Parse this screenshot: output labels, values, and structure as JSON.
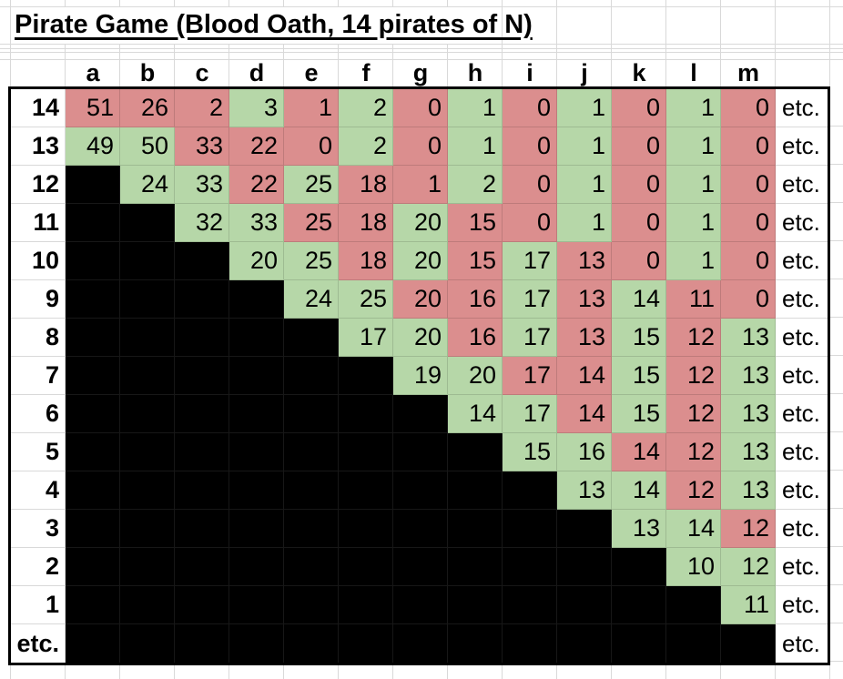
{
  "title": "Pirate Game (Blood Oath, 14 pirates of N)",
  "etc_label": "etc.",
  "columns": [
    "a",
    "b",
    "c",
    "d",
    "e",
    "f",
    "g",
    "h",
    "i",
    "j",
    "k",
    "l",
    "m"
  ],
  "colors": {
    "red": "#db8e8e",
    "green": "#b6d7a8",
    "black": "#000000",
    "gridline": "#d9d9d9",
    "table_border": "#000000"
  },
  "table": {
    "rows": [
      {
        "label": "14",
        "cells": [
          {
            "v": "51",
            "c": "red"
          },
          {
            "v": "26",
            "c": "red"
          },
          {
            "v": "2",
            "c": "red"
          },
          {
            "v": "3",
            "c": "green"
          },
          {
            "v": "1",
            "c": "red"
          },
          {
            "v": "2",
            "c": "green"
          },
          {
            "v": "0",
            "c": "red"
          },
          {
            "v": "1",
            "c": "green"
          },
          {
            "v": "0",
            "c": "red"
          },
          {
            "v": "1",
            "c": "green"
          },
          {
            "v": "0",
            "c": "red"
          },
          {
            "v": "1",
            "c": "green"
          },
          {
            "v": "0",
            "c": "red"
          }
        ]
      },
      {
        "label": "13",
        "cells": [
          {
            "v": "49",
            "c": "green"
          },
          {
            "v": "50",
            "c": "green"
          },
          {
            "v": "33",
            "c": "red"
          },
          {
            "v": "22",
            "c": "red"
          },
          {
            "v": "0",
            "c": "red"
          },
          {
            "v": "2",
            "c": "green"
          },
          {
            "v": "0",
            "c": "red"
          },
          {
            "v": "1",
            "c": "green"
          },
          {
            "v": "0",
            "c": "red"
          },
          {
            "v": "1",
            "c": "green"
          },
          {
            "v": "0",
            "c": "red"
          },
          {
            "v": "1",
            "c": "green"
          },
          {
            "v": "0",
            "c": "red"
          }
        ]
      },
      {
        "label": "12",
        "cells": [
          {
            "c": "black"
          },
          {
            "v": "24",
            "c": "green"
          },
          {
            "v": "33",
            "c": "green"
          },
          {
            "v": "22",
            "c": "red"
          },
          {
            "v": "25",
            "c": "green"
          },
          {
            "v": "18",
            "c": "red"
          },
          {
            "v": "1",
            "c": "red"
          },
          {
            "v": "2",
            "c": "green"
          },
          {
            "v": "0",
            "c": "red"
          },
          {
            "v": "1",
            "c": "green"
          },
          {
            "v": "0",
            "c": "red"
          },
          {
            "v": "1",
            "c": "green"
          },
          {
            "v": "0",
            "c": "red"
          }
        ]
      },
      {
        "label": "11",
        "cells": [
          {
            "c": "black"
          },
          {
            "c": "black"
          },
          {
            "v": "32",
            "c": "green"
          },
          {
            "v": "33",
            "c": "green"
          },
          {
            "v": "25",
            "c": "red"
          },
          {
            "v": "18",
            "c": "red"
          },
          {
            "v": "20",
            "c": "green"
          },
          {
            "v": "15",
            "c": "red"
          },
          {
            "v": "0",
            "c": "red"
          },
          {
            "v": "1",
            "c": "green"
          },
          {
            "v": "0",
            "c": "red"
          },
          {
            "v": "1",
            "c": "green"
          },
          {
            "v": "0",
            "c": "red"
          }
        ]
      },
      {
        "label": "10",
        "cells": [
          {
            "c": "black"
          },
          {
            "c": "black"
          },
          {
            "c": "black"
          },
          {
            "v": "20",
            "c": "green"
          },
          {
            "v": "25",
            "c": "green"
          },
          {
            "v": "18",
            "c": "red"
          },
          {
            "v": "20",
            "c": "green"
          },
          {
            "v": "15",
            "c": "red"
          },
          {
            "v": "17",
            "c": "green"
          },
          {
            "v": "13",
            "c": "red"
          },
          {
            "v": "0",
            "c": "red"
          },
          {
            "v": "1",
            "c": "green"
          },
          {
            "v": "0",
            "c": "red"
          }
        ]
      },
      {
        "label": "9",
        "cells": [
          {
            "c": "black"
          },
          {
            "c": "black"
          },
          {
            "c": "black"
          },
          {
            "c": "black"
          },
          {
            "v": "24",
            "c": "green"
          },
          {
            "v": "25",
            "c": "green"
          },
          {
            "v": "20",
            "c": "red"
          },
          {
            "v": "16",
            "c": "red"
          },
          {
            "v": "17",
            "c": "green"
          },
          {
            "v": "13",
            "c": "red"
          },
          {
            "v": "14",
            "c": "green"
          },
          {
            "v": "11",
            "c": "red"
          },
          {
            "v": "0",
            "c": "red"
          }
        ]
      },
      {
        "label": "8",
        "cells": [
          {
            "c": "black"
          },
          {
            "c": "black"
          },
          {
            "c": "black"
          },
          {
            "c": "black"
          },
          {
            "c": "black"
          },
          {
            "v": "17",
            "c": "green"
          },
          {
            "v": "20",
            "c": "green"
          },
          {
            "v": "16",
            "c": "red"
          },
          {
            "v": "17",
            "c": "green"
          },
          {
            "v": "13",
            "c": "red"
          },
          {
            "v": "15",
            "c": "green"
          },
          {
            "v": "12",
            "c": "red"
          },
          {
            "v": "13",
            "c": "green"
          }
        ]
      },
      {
        "label": "7",
        "cells": [
          {
            "c": "black"
          },
          {
            "c": "black"
          },
          {
            "c": "black"
          },
          {
            "c": "black"
          },
          {
            "c": "black"
          },
          {
            "c": "black"
          },
          {
            "v": "19",
            "c": "green"
          },
          {
            "v": "20",
            "c": "green"
          },
          {
            "v": "17",
            "c": "red"
          },
          {
            "v": "14",
            "c": "red"
          },
          {
            "v": "15",
            "c": "green"
          },
          {
            "v": "12",
            "c": "red"
          },
          {
            "v": "13",
            "c": "green"
          }
        ]
      },
      {
        "label": "6",
        "cells": [
          {
            "c": "black"
          },
          {
            "c": "black"
          },
          {
            "c": "black"
          },
          {
            "c": "black"
          },
          {
            "c": "black"
          },
          {
            "c": "black"
          },
          {
            "c": "black"
          },
          {
            "v": "14",
            "c": "green"
          },
          {
            "v": "17",
            "c": "green"
          },
          {
            "v": "14",
            "c": "red"
          },
          {
            "v": "15",
            "c": "green"
          },
          {
            "v": "12",
            "c": "red"
          },
          {
            "v": "13",
            "c": "green"
          }
        ]
      },
      {
        "label": "5",
        "cells": [
          {
            "c": "black"
          },
          {
            "c": "black"
          },
          {
            "c": "black"
          },
          {
            "c": "black"
          },
          {
            "c": "black"
          },
          {
            "c": "black"
          },
          {
            "c": "black"
          },
          {
            "c": "black"
          },
          {
            "v": "15",
            "c": "green"
          },
          {
            "v": "16",
            "c": "green"
          },
          {
            "v": "14",
            "c": "red"
          },
          {
            "v": "12",
            "c": "red"
          },
          {
            "v": "13",
            "c": "green"
          }
        ]
      },
      {
        "label": "4",
        "cells": [
          {
            "c": "black"
          },
          {
            "c": "black"
          },
          {
            "c": "black"
          },
          {
            "c": "black"
          },
          {
            "c": "black"
          },
          {
            "c": "black"
          },
          {
            "c": "black"
          },
          {
            "c": "black"
          },
          {
            "c": "black"
          },
          {
            "v": "13",
            "c": "green"
          },
          {
            "v": "14",
            "c": "green"
          },
          {
            "v": "12",
            "c": "red"
          },
          {
            "v": "13",
            "c": "green"
          }
        ]
      },
      {
        "label": "3",
        "cells": [
          {
            "c": "black"
          },
          {
            "c": "black"
          },
          {
            "c": "black"
          },
          {
            "c": "black"
          },
          {
            "c": "black"
          },
          {
            "c": "black"
          },
          {
            "c": "black"
          },
          {
            "c": "black"
          },
          {
            "c": "black"
          },
          {
            "c": "black"
          },
          {
            "v": "13",
            "c": "green"
          },
          {
            "v": "14",
            "c": "green"
          },
          {
            "v": "12",
            "c": "red"
          }
        ]
      },
      {
        "label": "2",
        "cells": [
          {
            "c": "black"
          },
          {
            "c": "black"
          },
          {
            "c": "black"
          },
          {
            "c": "black"
          },
          {
            "c": "black"
          },
          {
            "c": "black"
          },
          {
            "c": "black"
          },
          {
            "c": "black"
          },
          {
            "c": "black"
          },
          {
            "c": "black"
          },
          {
            "c": "black"
          },
          {
            "v": "10",
            "c": "green"
          },
          {
            "v": "12",
            "c": "green"
          }
        ]
      },
      {
        "label": "1",
        "cells": [
          {
            "c": "black"
          },
          {
            "c": "black"
          },
          {
            "c": "black"
          },
          {
            "c": "black"
          },
          {
            "c": "black"
          },
          {
            "c": "black"
          },
          {
            "c": "black"
          },
          {
            "c": "black"
          },
          {
            "c": "black"
          },
          {
            "c": "black"
          },
          {
            "c": "black"
          },
          {
            "c": "black"
          },
          {
            "v": "11",
            "c": "green"
          }
        ]
      },
      {
        "label": "etc.",
        "cells": [
          {
            "c": "black"
          },
          {
            "c": "black"
          },
          {
            "c": "black"
          },
          {
            "c": "black"
          },
          {
            "c": "black"
          },
          {
            "c": "black"
          },
          {
            "c": "black"
          },
          {
            "c": "black"
          },
          {
            "c": "black"
          },
          {
            "c": "black"
          },
          {
            "c": "black"
          },
          {
            "c": "black"
          },
          {
            "c": "black"
          }
        ]
      }
    ]
  }
}
